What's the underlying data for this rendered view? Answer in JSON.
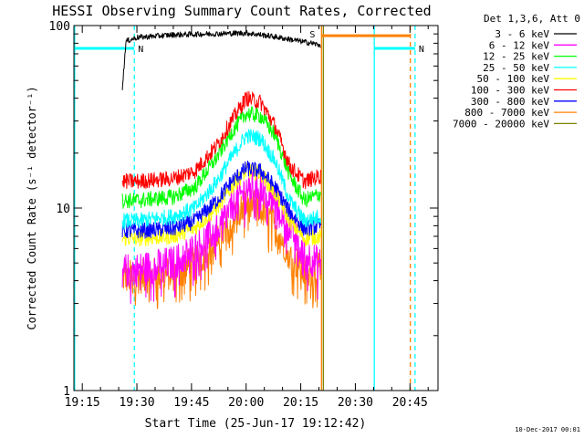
{
  "chart_data": {
    "type": "line",
    "title": "HESSI Observing Summary Count Rates, Corrected",
    "xlabel": "Start Time (25-Jun-17 19:12:42)",
    "ylabel": "Corrected Count Rate (s⁻¹ detector⁻¹)",
    "yscale": "log",
    "ylim": [
      1,
      100
    ],
    "xlim_minutes_after_19_00": [
      12.7,
      112.7
    ],
    "x_ticks": [
      {
        "label": "19:15",
        "t": 15
      },
      {
        "label": "19:30",
        "t": 30
      },
      {
        "label": "19:45",
        "t": 45
      },
      {
        "label": "20:00",
        "t": 60
      },
      {
        "label": "20:15",
        "t": 75
      },
      {
        "label": "20:30",
        "t": 90
      },
      {
        "label": "20:45",
        "t": 105
      }
    ],
    "y_ticks": [
      {
        "label": "1",
        "v": 1
      },
      {
        "label": "10",
        "v": 10
      },
      {
        "label": "100",
        "v": 100
      }
    ],
    "legend_title": "Det 1,3,6, Att 0",
    "legend_position": "outside-right",
    "series": [
      {
        "name": "3 - 6 keV",
        "color": "#000000",
        "x": [
          26,
          27,
          30,
          40,
          50,
          60,
          66,
          72,
          78,
          80.5
        ],
        "y": [
          45,
          82,
          86,
          89,
          90,
          91,
          88,
          84,
          80,
          78
        ]
      },
      {
        "name": "6 - 12 keV",
        "color": "#ff00ff",
        "x": [
          26,
          30,
          40,
          46,
          52,
          56,
          60,
          64,
          68,
          72,
          76,
          80.5
        ],
        "y": [
          4.5,
          4.6,
          5,
          6,
          7.8,
          10,
          12.8,
          13.2,
          11,
          8,
          5.6,
          4.9
        ]
      },
      {
        "name": "12 - 25 keV",
        "color": "#00ff00",
        "x": [
          26,
          30,
          40,
          46,
          52,
          56,
          60,
          64,
          68,
          72,
          76,
          80.5
        ],
        "y": [
          11,
          11,
          11.5,
          13,
          19,
          26,
          33,
          32,
          25,
          15,
          11,
          12
        ]
      },
      {
        "name": "25 - 50 keV",
        "color": "#00ffff",
        "x": [
          26,
          30,
          40,
          46,
          52,
          56,
          60,
          64,
          68,
          72,
          76,
          80.5
        ],
        "y": [
          8.5,
          8.5,
          9,
          10,
          14,
          19,
          25,
          24,
          18,
          11,
          8.5,
          9
        ]
      },
      {
        "name": "50 - 100 keV",
        "color": "#ffff00",
        "x": [
          26,
          30,
          40,
          46,
          52,
          56,
          60,
          64,
          68,
          72,
          76,
          80.5
        ],
        "y": [
          6.8,
          6.8,
          7,
          7.8,
          10,
          13,
          16,
          15.5,
          12,
          8.5,
          6.8,
          7
        ]
      },
      {
        "name": "100 - 300 keV",
        "color": "#ff0000",
        "x": [
          26,
          30,
          40,
          46,
          52,
          56,
          60,
          64,
          68,
          72,
          76,
          80.5
        ],
        "y": [
          14,
          14,
          14.5,
          16,
          22,
          30,
          40,
          38,
          28,
          17,
          14,
          15
        ]
      },
      {
        "name": "300 - 800 keV",
        "color": "#0000ff",
        "x": [
          26,
          30,
          40,
          46,
          52,
          56,
          60,
          64,
          68,
          72,
          76,
          80.5
        ],
        "y": [
          7.5,
          7.5,
          7.7,
          8.5,
          11,
          14,
          16.5,
          16,
          13,
          9.5,
          7.7,
          8
        ]
      },
      {
        "name": "800 - 7000 keV",
        "color": "#ff8000",
        "x": [
          26,
          30,
          40,
          46,
          52,
          56,
          60,
          64,
          68,
          72,
          76,
          80.5
        ],
        "y": [
          4.2,
          4.2,
          4.4,
          5,
          6.5,
          8.5,
          10.5,
          10,
          8,
          5.6,
          4.4,
          4.6
        ]
      },
      {
        "name": "7000 - 20000 keV",
        "color": "#808000",
        "x": [],
        "y": []
      }
    ],
    "overlays": {
      "night_markers": [
        {
          "label": "N",
          "t_start": 12.7,
          "t_end": 29.3,
          "level": 75,
          "color": "#00ffff"
        },
        {
          "label": "N",
          "t_start": 95.2,
          "t_end": 106.4,
          "level": 75,
          "color": "#00ffff"
        }
      ],
      "saa_marker": {
        "label": "S",
        "t_start": 80.7,
        "t_end": 105.1,
        "level": 88,
        "color": "#ff8000"
      },
      "vertical_lines": [
        {
          "t": 12.9,
          "color": "#00ffff",
          "style": "solid"
        },
        {
          "t": 29.3,
          "color": "#00ffff",
          "style": "dashed"
        },
        {
          "t": 80.7,
          "color": "#ff8000",
          "style": "solid"
        },
        {
          "t": 81.2,
          "color": "#808000",
          "style": "solid"
        },
        {
          "t": 95.2,
          "color": "#00ffff",
          "style": "solid"
        },
        {
          "t": 105.1,
          "color": "#ff8000",
          "style": "dashed"
        },
        {
          "t": 106.4,
          "color": "#00ffff",
          "style": "dashed"
        }
      ]
    }
  },
  "footer": {
    "timestamp": "10-Dec-2017 00:01"
  }
}
